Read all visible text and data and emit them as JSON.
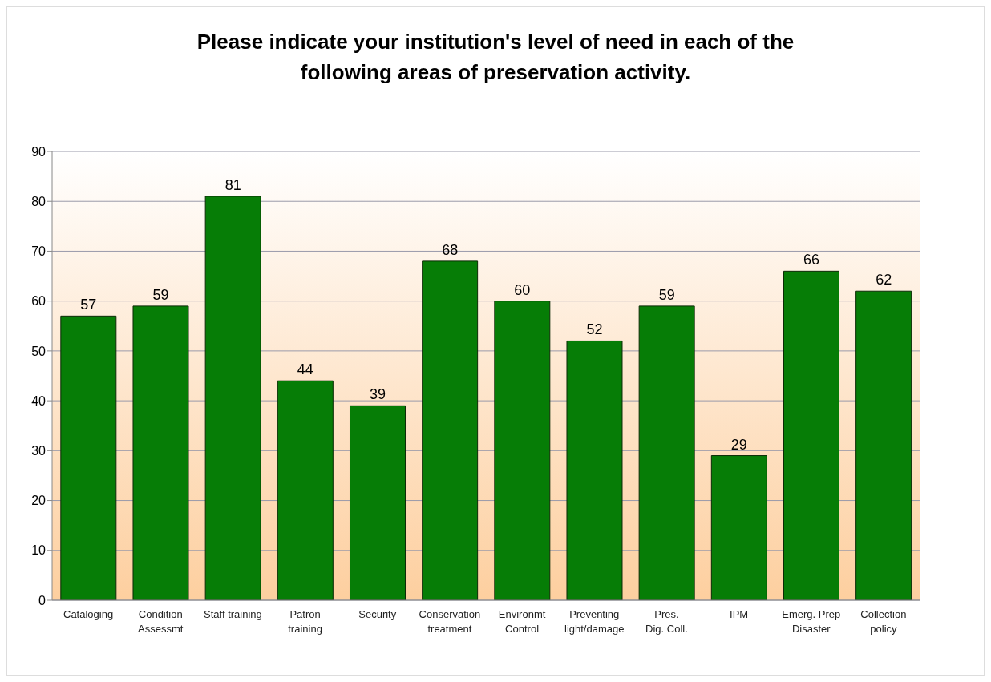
{
  "chart_data": {
    "type": "bar",
    "title": "Please indicate your institution's level of need in each of the following areas of preservation activity.",
    "categories": [
      "Cataloging",
      "Condition\nAssessmt",
      "Staff training",
      "Patron\ntraining",
      "Security",
      "Conservation\ntreatment",
      "Environmt\nControl",
      "Preventing\nlight/damage",
      "Pres.\nDig. Coll.",
      "IPM",
      "Emerg. Prep\nDisaster",
      "Collection\npolicy"
    ],
    "values": [
      57,
      59,
      81,
      44,
      39,
      68,
      60,
      52,
      59,
      29,
      66,
      62
    ],
    "color": "#067d06",
    "ylim": [
      0,
      90
    ],
    "yticks": [
      0,
      10,
      20,
      30,
      40,
      50,
      60,
      70,
      80,
      90
    ],
    "grid": "y",
    "data_labels": true
  }
}
